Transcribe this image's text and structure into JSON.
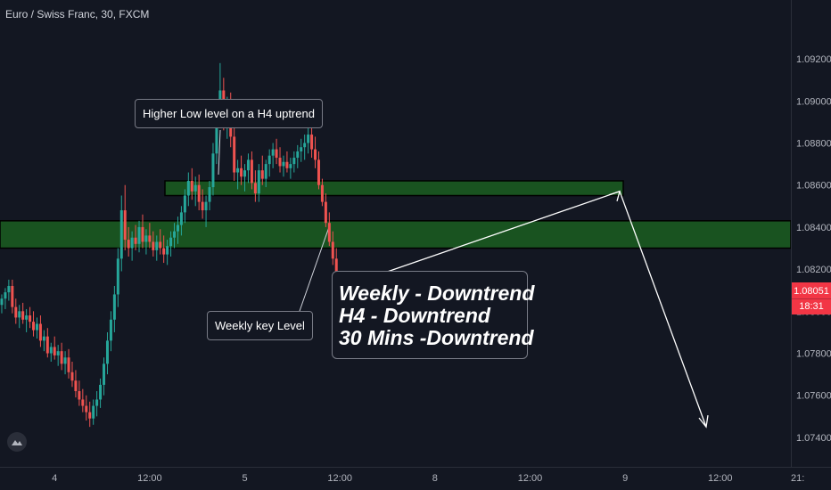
{
  "chart_data": {
    "type": "candlestick",
    "title": "Euro / Swiss Franc, 30, FXCM",
    "ylim": [
      1.0726,
      1.0948
    ],
    "y_ticks": [
      "1.09200",
      "1.09000",
      "1.08800",
      "1.08600",
      "1.08400",
      "1.08200",
      "1.08000",
      "1.07800",
      "1.07600",
      "1.07400"
    ],
    "y_tick_values": [
      1.092,
      1.09,
      1.088,
      1.086,
      1.084,
      1.082,
      1.08,
      1.078,
      1.076,
      1.074
    ],
    "x_ticks": [
      {
        "label": "4",
        "index": 15
      },
      {
        "label": "12:00",
        "index": 42
      },
      {
        "label": "5",
        "index": 69
      },
      {
        "label": "12:00",
        "index": 96
      },
      {
        "label": "8",
        "index": 123
      },
      {
        "label": "12:00",
        "index": 150
      },
      {
        "label": "9",
        "index": 177
      },
      {
        "label": "12:00",
        "index": 204
      },
      {
        "label": "21:",
        "index": 226
      }
    ],
    "candles_ohlc": [
      [
        1.0803,
        1.0808,
        1.0799,
        1.0806
      ],
      [
        1.0806,
        1.0811,
        1.0801,
        1.0809
      ],
      [
        1.0809,
        1.0815,
        1.0805,
        1.0812
      ],
      [
        1.0812,
        1.0815,
        1.0799,
        1.0802
      ],
      [
        1.0802,
        1.0806,
        1.0794,
        1.0797
      ],
      [
        1.0797,
        1.0803,
        1.0792,
        1.08
      ],
      [
        1.08,
        1.0804,
        1.0794,
        1.0796
      ],
      [
        1.0796,
        1.0801,
        1.079,
        1.0798
      ],
      [
        1.0798,
        1.0802,
        1.0792,
        1.0795
      ],
      [
        1.0795,
        1.08,
        1.0788,
        1.0791
      ],
      [
        1.0791,
        1.0797,
        1.0787,
        1.0794
      ],
      [
        1.0794,
        1.0798,
        1.0783,
        1.0786
      ],
      [
        1.0786,
        1.0791,
        1.0781,
        1.0788
      ],
      [
        1.0788,
        1.0792,
        1.0778,
        1.078
      ],
      [
        1.078,
        1.0785,
        1.0776,
        1.0783
      ],
      [
        1.0783,
        1.0788,
        1.0777,
        1.0779
      ],
      [
        1.0779,
        1.0784,
        1.0774,
        1.0781
      ],
      [
        1.0781,
        1.0785,
        1.0772,
        1.0775
      ],
      [
        1.0775,
        1.0781,
        1.077,
        1.0778
      ],
      [
        1.0778,
        1.0782,
        1.0768,
        1.0771
      ],
      [
        1.0771,
        1.0776,
        1.0764,
        1.0767
      ],
      [
        1.0767,
        1.0772,
        1.0759,
        1.0762
      ],
      [
        1.0762,
        1.0767,
        1.0755,
        1.0758
      ],
      [
        1.0758,
        1.0763,
        1.0752,
        1.0755
      ],
      [
        1.0755,
        1.076,
        1.0748,
        1.0752
      ],
      [
        1.0752,
        1.0757,
        1.0745,
        1.0749
      ],
      [
        1.0749,
        1.0758,
        1.0746,
        1.0755
      ],
      [
        1.0755,
        1.0762,
        1.075,
        1.0758
      ],
      [
        1.0758,
        1.0768,
        1.0754,
        1.0765
      ],
      [
        1.0765,
        1.0778,
        1.076,
        1.0775
      ],
      [
        1.0775,
        1.079,
        1.077,
        1.0786
      ],
      [
        1.0786,
        1.08,
        1.0781,
        1.0796
      ],
      [
        1.0796,
        1.0812,
        1.079,
        1.0808
      ],
      [
        1.0808,
        1.083,
        1.0802,
        1.0825
      ],
      [
        1.0825,
        1.0855,
        1.0819,
        1.0848
      ],
      [
        1.0848,
        1.086,
        1.0829,
        1.0834
      ],
      [
        1.0834,
        1.084,
        1.0826,
        1.083
      ],
      [
        1.083,
        1.0838,
        1.0824,
        1.0835
      ],
      [
        1.0835,
        1.0841,
        1.0829,
        1.0832
      ],
      [
        1.0832,
        1.0843,
        1.0828,
        1.084
      ],
      [
        1.084,
        1.0846,
        1.083,
        1.0833
      ],
      [
        1.0833,
        1.0839,
        1.0827,
        1.0836
      ],
      [
        1.0836,
        1.0842,
        1.083,
        1.0833
      ],
      [
        1.0833,
        1.0838,
        1.0826,
        1.0829
      ],
      [
        1.0829,
        1.0836,
        1.0824,
        1.0833
      ],
      [
        1.0833,
        1.0839,
        1.0827,
        1.083
      ],
      [
        1.083,
        1.0836,
        1.0823,
        1.0827
      ],
      [
        1.0827,
        1.0834,
        1.0822,
        1.0831
      ],
      [
        1.0831,
        1.0838,
        1.0826,
        1.0835
      ],
      [
        1.0835,
        1.0842,
        1.083,
        1.0838
      ],
      [
        1.0838,
        1.0845,
        1.0832,
        1.0841
      ],
      [
        1.0841,
        1.085,
        1.0836,
        1.0847
      ],
      [
        1.0847,
        1.0858,
        1.0842,
        1.0855
      ],
      [
        1.0855,
        1.0866,
        1.085,
        1.0862
      ],
      [
        1.0862,
        1.0868,
        1.0853,
        1.0857
      ],
      [
        1.0857,
        1.0864,
        1.085,
        1.086
      ],
      [
        1.086,
        1.0865,
        1.0848,
        1.0852
      ],
      [
        1.0852,
        1.0858,
        1.0844,
        1.0848
      ],
      [
        1.0848,
        1.0855,
        1.084,
        1.0852
      ],
      [
        1.0852,
        1.0862,
        1.0848,
        1.0859
      ],
      [
        1.0859,
        1.088,
        1.0855,
        1.0875
      ],
      [
        1.0875,
        1.09,
        1.087,
        1.0896
      ],
      [
        1.0896,
        1.0918,
        1.089,
        1.0905
      ],
      [
        1.0905,
        1.0911,
        1.0886,
        1.0891
      ],
      [
        1.0891,
        1.0902,
        1.0882,
        1.0898
      ],
      [
        1.0898,
        1.0904,
        1.0878,
        1.0883
      ],
      [
        1.0883,
        1.0889,
        1.0862,
        1.0866
      ],
      [
        1.0866,
        1.0872,
        1.0858,
        1.0868
      ],
      [
        1.0868,
        1.0874,
        1.086,
        1.0864
      ],
      [
        1.0864,
        1.087,
        1.0857,
        1.0867
      ],
      [
        1.0867,
        1.0875,
        1.0861,
        1.0872
      ],
      [
        1.0872,
        1.0876,
        1.0858,
        1.0861
      ],
      [
        1.0861,
        1.0867,
        1.0852,
        1.0856
      ],
      [
        1.0856,
        1.087,
        1.0852,
        1.0867
      ],
      [
        1.0867,
        1.0874,
        1.086,
        1.0863
      ],
      [
        1.0863,
        1.0872,
        1.0859,
        1.087
      ],
      [
        1.087,
        1.0877,
        1.0864,
        1.0874
      ],
      [
        1.0874,
        1.088,
        1.0868,
        1.0877
      ],
      [
        1.0877,
        1.0882,
        1.087,
        1.0873
      ],
      [
        1.0873,
        1.0878,
        1.0866,
        1.0869
      ],
      [
        1.0869,
        1.0874,
        1.0864,
        1.0871
      ],
      [
        1.0871,
        1.0876,
        1.0866,
        1.0868
      ],
      [
        1.0868,
        1.0873,
        1.0863,
        1.087
      ],
      [
        1.087,
        1.0876,
        1.0866,
        1.0873
      ],
      [
        1.0873,
        1.0879,
        1.0868,
        1.0876
      ],
      [
        1.0876,
        1.0882,
        1.0871,
        1.0878
      ],
      [
        1.0878,
        1.0884,
        1.0872,
        1.088
      ],
      [
        1.088,
        1.0891,
        1.0875,
        1.0884
      ],
      [
        1.0884,
        1.0889,
        1.0873,
        1.0877
      ],
      [
        1.0877,
        1.0883,
        1.0868,
        1.0872
      ],
      [
        1.0872,
        1.0876,
        1.0858,
        1.086
      ],
      [
        1.086,
        1.0863,
        1.085,
        1.0852
      ],
      [
        1.0852,
        1.0856,
        1.084,
        1.0842
      ],
      [
        1.0842,
        1.0847,
        1.0831,
        1.0833
      ],
      [
        1.0833,
        1.0838,
        1.0822,
        1.0825
      ],
      [
        1.0825,
        1.083,
        1.0805,
        1.0808
      ],
      [
        1.0808,
        1.0815,
        1.0802,
        1.0812
      ],
      [
        1.0812,
        1.0816,
        1.0804,
        1.0807
      ],
      [
        1.0807,
        1.0814,
        1.0803,
        1.0811
      ],
      [
        1.0811,
        1.0815,
        1.0806,
        1.0809
      ],
      [
        1.0809,
        1.0814,
        1.0806,
        1.0812
      ],
      [
        1.0812,
        1.0815,
        1.0807,
        1.081
      ],
      [
        1.081,
        1.0814,
        1.0807,
        1.0812
      ],
      [
        1.0812,
        1.0815,
        1.0808,
        1.0811
      ],
      [
        1.0811,
        1.0813,
        1.0802,
        1.0805
      ]
    ],
    "zones": [
      {
        "label": "Higher Low level on a H4 uptrend",
        "from": 1.0855,
        "to": 1.0862
      },
      {
        "label": "Weekly key Level",
        "from": 1.083,
        "to": 1.0843
      }
    ],
    "last_price": "1.08051",
    "countdown": "18:31",
    "annotations": [
      "Higher Low level on a H4 uptrend",
      "Weekly key Level",
      "Weekly - Downtrend",
      "H4 - Downtrend",
      "30 Mins -Downtrend"
    ],
    "projection": [
      [
        1.0811,
        1.0857
      ],
      [
        1.0857,
        1.0745
      ]
    ],
    "colors": {
      "up": "#26a69a",
      "down": "#ef5350",
      "zone": "#1b5e20",
      "background": "#131722",
      "price_tag": "#f23645"
    },
    "grid": false
  }
}
